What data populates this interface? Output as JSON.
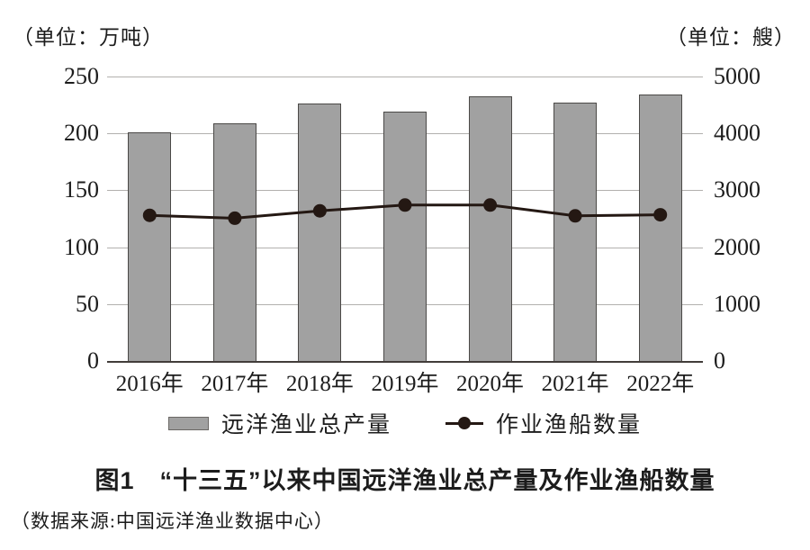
{
  "units": {
    "left": "（单位：万吨）",
    "right": "（单位：艘）"
  },
  "chart_data": {
    "type": "bar",
    "categories": [
      "2016年",
      "2017年",
      "2018年",
      "2019年",
      "2020年",
      "2021年",
      "2022年"
    ],
    "series": [
      {
        "name": "远洋渔业总产量",
        "type": "bar",
        "axis": "left",
        "values": [
          201,
          209,
          226,
          219,
          233,
          227,
          234
        ],
        "color": "#a1a1a1",
        "border_color": "#4b4947"
      },
      {
        "name": "作业渔船数量",
        "type": "line",
        "axis": "right",
        "values": [
          2560,
          2510,
          2640,
          2740,
          2740,
          2550,
          2570
        ],
        "color": "#241813"
      }
    ],
    "left_axis": {
      "label": "（单位：万吨）",
      "ticks": [
        250,
        200,
        150,
        100,
        50,
        0
      ],
      "min": 0,
      "max": 250
    },
    "right_axis": {
      "label": "（单位：艘）",
      "ticks": [
        5000,
        4000,
        3000,
        2000,
        1000,
        0
      ],
      "min": 0,
      "max": 5000
    },
    "grid": true,
    "legend_position": "bottom",
    "title": "图1　“十三五”以来中国远洋渔业总产量及作业渔船数量"
  },
  "caption": {
    "title": "图1　“十三五”以来中国远洋渔业总产量及作业渔船数量",
    "source": "（数据来源:中国远洋渔业数据中心）"
  }
}
